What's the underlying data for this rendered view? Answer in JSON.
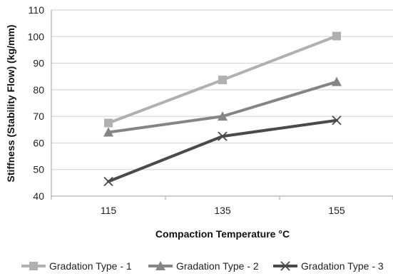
{
  "chart_data": {
    "type": "line",
    "title": "",
    "xlabel": "Compaction Temperature °C",
    "ylabel": "Stiffness (Stability Flow) (kg/mm)",
    "x": [
      "115",
      "135",
      "155"
    ],
    "ylim": [
      40,
      110
    ],
    "yticks": [
      "40",
      "50",
      "60",
      "70",
      "80",
      "90",
      "100",
      "110"
    ],
    "grid": true,
    "legend_position": "bottom",
    "series": [
      {
        "name": "Gradation Type - 1",
        "values": [
          67.5,
          83.7,
          100.2
        ],
        "color": "#b0b0b0",
        "marker": "square"
      },
      {
        "name": "Gradation Type - 2",
        "values": [
          64.0,
          70.0,
          83.0
        ],
        "color": "#858585",
        "marker": "triangle"
      },
      {
        "name": "Gradation Type - 3",
        "values": [
          45.5,
          62.5,
          68.5
        ],
        "color": "#4a4a4a",
        "marker": "x"
      }
    ]
  }
}
